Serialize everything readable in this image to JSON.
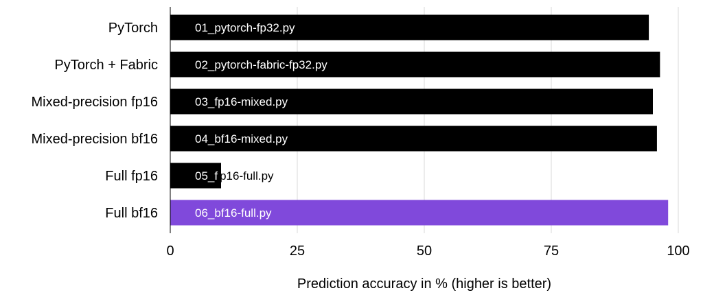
{
  "chart_data": {
    "type": "bar",
    "orientation": "horizontal",
    "categories": [
      "PyTorch",
      "PyTorch + Fabric",
      "Mixed-precision fp16",
      "Mixed-precision bf16",
      "Full fp16",
      "Full bf16"
    ],
    "bar_labels": [
      "01_pytorch-fp32.py",
      "02_pytorch-fabric-fp32.py",
      "03_fp16-mixed.py",
      "04_bf16-mixed.py",
      "05_fp16-full.py",
      "06_bf16-full.py"
    ],
    "values": [
      94.2,
      96.4,
      95.0,
      95.8,
      10.0,
      98.0
    ],
    "bar_colors": [
      "#000000",
      "#000000",
      "#000000",
      "#000000",
      "#000000",
      "#8049DB"
    ],
    "xlabel": "Prediction accuracy in % (higher is better)",
    "ylabel": "",
    "xlim": [
      0,
      100
    ],
    "xticks": [
      0,
      25,
      50,
      75,
      100
    ],
    "grid": "vertical",
    "legend": "none"
  }
}
